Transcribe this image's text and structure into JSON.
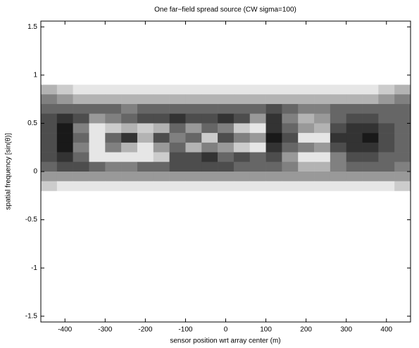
{
  "chart_data": {
    "type": "heatmap",
    "title": "One far−field spread source (CW sigma=100)",
    "xlabel": "sensor position wrt array center (m)",
    "ylabel": "spatial frequency [sin(θ)]",
    "xlim": [
      -460,
      460
    ],
    "ylim": [
      -1.56,
      1.56
    ],
    "xticks": [
      -400,
      -300,
      -200,
      -100,
      0,
      100,
      200,
      300,
      400
    ],
    "yticks": [
      -1.5,
      -1,
      -0.5,
      0,
      0.5,
      1,
      1.5
    ],
    "colormap": "gray",
    "x": [
      -440,
      -400,
      -360,
      -320,
      -280,
      -240,
      -200,
      -160,
      -120,
      -80,
      -40,
      0,
      40,
      80,
      120,
      160,
      200,
      240,
      280,
      320,
      360,
      400,
      440
    ],
    "y": [
      0.85,
      0.75,
      0.65,
      0.55,
      0.45,
      0.35,
      0.25,
      0.15,
      0.05,
      -0.05,
      -0.15
    ],
    "z": [
      [
        0.3,
        0.2,
        0.1,
        0.1,
        0.1,
        0.1,
        0.1,
        0.1,
        0.1,
        0.1,
        0.1,
        0.1,
        0.1,
        0.1,
        0.1,
        0.1,
        0.1,
        0.1,
        0.1,
        0.1,
        0.1,
        0.2,
        0.3
      ],
      [
        0.5,
        0.4,
        0.3,
        0.3,
        0.3,
        0.3,
        0.3,
        0.3,
        0.3,
        0.3,
        0.3,
        0.3,
        0.3,
        0.3,
        0.3,
        0.3,
        0.3,
        0.3,
        0.3,
        0.3,
        0.3,
        0.4,
        0.5
      ],
      [
        0.6,
        0.6,
        0.6,
        0.6,
        0.6,
        0.5,
        0.6,
        0.6,
        0.6,
        0.6,
        0.6,
        0.6,
        0.6,
        0.6,
        0.7,
        0.6,
        0.5,
        0.5,
        0.6,
        0.6,
        0.6,
        0.6,
        0.6
      ],
      [
        0.7,
        0.8,
        0.7,
        0.4,
        0.5,
        0.6,
        0.7,
        0.7,
        0.8,
        0.7,
        0.7,
        0.8,
        0.7,
        0.4,
        0.8,
        0.5,
        0.3,
        0.4,
        0.6,
        0.7,
        0.7,
        0.6,
        0.6
      ],
      [
        0.7,
        0.9,
        0.5,
        0.1,
        0.2,
        0.3,
        0.2,
        0.3,
        0.6,
        0.4,
        0.6,
        0.5,
        0.2,
        0.1,
        0.8,
        0.6,
        0.4,
        0.3,
        0.7,
        0.8,
        0.8,
        0.7,
        0.6
      ],
      [
        0.7,
        0.9,
        0.6,
        0.1,
        0.6,
        0.8,
        0.3,
        0.7,
        0.5,
        0.6,
        0.2,
        0.7,
        0.5,
        0.4,
        0.9,
        0.7,
        0.1,
        0.1,
        0.8,
        0.8,
        0.9,
        0.7,
        0.6
      ],
      [
        0.7,
        0.9,
        0.5,
        0.1,
        0.5,
        0.3,
        0.1,
        0.4,
        0.6,
        0.3,
        0.5,
        0.4,
        0.2,
        0.1,
        0.8,
        0.6,
        0.5,
        0.4,
        0.7,
        0.8,
        0.8,
        0.7,
        0.6
      ],
      [
        0.7,
        0.8,
        0.6,
        0.1,
        0.1,
        0.1,
        0.1,
        0.2,
        0.7,
        0.7,
        0.8,
        0.6,
        0.7,
        0.6,
        0.7,
        0.4,
        0.1,
        0.1,
        0.5,
        0.7,
        0.7,
        0.6,
        0.6
      ],
      [
        0.6,
        0.7,
        0.7,
        0.6,
        0.5,
        0.5,
        0.6,
        0.6,
        0.7,
        0.7,
        0.7,
        0.7,
        0.6,
        0.6,
        0.6,
        0.5,
        0.3,
        0.3,
        0.5,
        0.6,
        0.6,
        0.6,
        0.5
      ],
      [
        0.4,
        0.4,
        0.4,
        0.4,
        0.4,
        0.4,
        0.4,
        0.4,
        0.4,
        0.4,
        0.4,
        0.4,
        0.4,
        0.4,
        0.4,
        0.4,
        0.4,
        0.4,
        0.4,
        0.4,
        0.4,
        0.4,
        0.4
      ],
      [
        0.2,
        0.1,
        0.1,
        0.1,
        0.1,
        0.1,
        0.1,
        0.1,
        0.1,
        0.1,
        0.1,
        0.1,
        0.1,
        0.1,
        0.1,
        0.1,
        0.1,
        0.1,
        0.1,
        0.1,
        0.1,
        0.1,
        0.2
      ]
    ]
  }
}
